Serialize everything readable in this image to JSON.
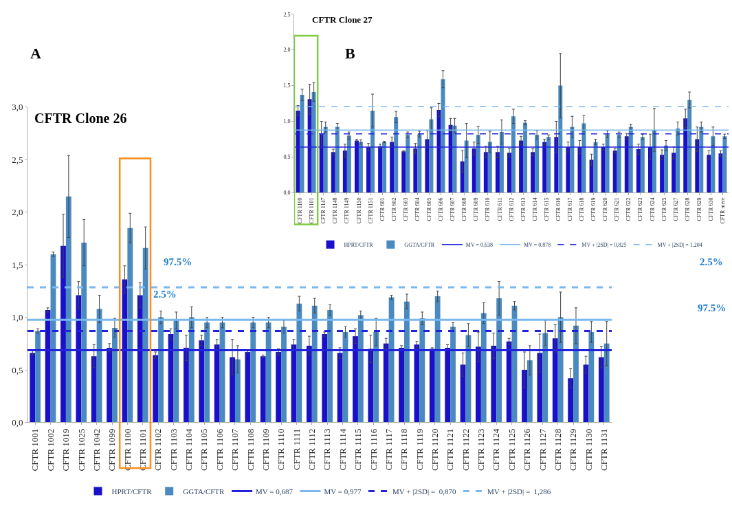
{
  "chart_data": [
    {
      "type": "bar",
      "title": "CFTR Clone 26",
      "categories": [
        "CFTR 1001",
        "CFTR 1002",
        "CFTR 1019",
        "CFTR 1025",
        "CFTR 1042",
        "CFTR 1099",
        "CFTR 1100",
        "CFTR 1101",
        "CFTR 1102",
        "CFTR 1103",
        "CFTR 1104",
        "CFTR 1105",
        "CFTR 1106",
        "CFTR 1107",
        "CFTR 1108",
        "CFTR 1109",
        "CFTR 1110",
        "CFTR 1111",
        "CFTR 1112",
        "CFTR 1113",
        "CFTR 1114",
        "CFTR 1115",
        "CFTR 1116",
        "CFTR 1117",
        "CFTR 1118",
        "CFTR 1119",
        "CFTR 1120",
        "CFTR 1121",
        "CFTR 1122",
        "CFTR 1123",
        "CFTR 1124",
        "CFTR 1125",
        "CFTR 1126",
        "CFTR 1127",
        "CFTR 1128",
        "CFTR 1129",
        "CFTR 1130",
        "CFTR 1131"
      ],
      "series": [
        {
          "name": "HPRT/CFTR",
          "color": "#1a10c8",
          "values": [
            0.66,
            1.07,
            1.68,
            1.21,
            0.63,
            0.71,
            1.36,
            1.21,
            0.64,
            0.84,
            0.71,
            0.78,
            0.74,
            0.62,
            0.67,
            0.63,
            0.67,
            0.74,
            0.73,
            0.84,
            0.66,
            0.82,
            0.7,
            0.75,
            0.71,
            0.74,
            0.7,
            0.71,
            0.55,
            0.72,
            0.73,
            0.77,
            0.5,
            0.66,
            0.8,
            0.42,
            0.55,
            0.62
          ],
          "errors": [
            0.02,
            0.02,
            0.3,
            0.13,
            0.11,
            0.04,
            0.13,
            0.12,
            0.03,
            0.05,
            0.12,
            0.05,
            0.05,
            0.17,
            0.01,
            0.01,
            0.03,
            0.05,
            0.09,
            0.02,
            0.05,
            0.07,
            0.13,
            0.05,
            0.02,
            0.03,
            0.01,
            0.03,
            0.11,
            0.14,
            0.12,
            0.03,
            0.17,
            0.18,
            0.13,
            0.09,
            0.08,
            0.1
          ]
        },
        {
          "name": "GGTA/CFTR",
          "color": "#4a8ac0",
          "values": [
            0.87,
            1.6,
            2.15,
            1.71,
            1.08,
            0.9,
            1.85,
            1.66,
            1.0,
            0.97,
            1.0,
            0.95,
            0.95,
            0.6,
            0.95,
            0.95,
            0.91,
            1.13,
            1.11,
            1.07,
            0.86,
            1.02,
            0.86,
            1.19,
            1.15,
            0.99,
            1.2,
            0.91,
            0.83,
            1.04,
            1.18,
            1.11,
            0.59,
            0.85,
            1.0,
            0.92,
            0.86,
            0.75
          ],
          "errors": [
            0.02,
            0.02,
            0.39,
            0.22,
            0.13,
            0.09,
            0.14,
            0.2,
            0.06,
            0.08,
            0.1,
            0.05,
            0.05,
            0.13,
            0.05,
            0.05,
            0.06,
            0.07,
            0.07,
            0.05,
            0.05,
            0.04,
            0.13,
            0.02,
            0.07,
            0.06,
            0.05,
            0.04,
            0.11,
            0.1,
            0.16,
            0.04,
            0.14,
            0.12,
            0.24,
            0.17,
            0.1,
            0.21
          ]
        }
      ],
      "ref_lines": [
        {
          "axis": "y",
          "value": 0.687,
          "label": "MV = 0,687",
          "color": "#2222dd",
          "line_style": "solid"
        },
        {
          "axis": "y",
          "value": 0.977,
          "label": "MV = 0,977",
          "color": "#7ab8f0",
          "line_style": "solid"
        },
        {
          "axis": "y",
          "value": 0.87,
          "label": "MV + |2SD| =  0,870",
          "color": "#2222dd",
          "line_style": "dashed"
        },
        {
          "axis": "y",
          "value": 1.286,
          "label": "MV + |2SD| =  1,286",
          "color": "#7ab8f0",
          "line_style": "dashed"
        }
      ],
      "ylim": [
        0,
        3
      ],
      "yticks": [
        {
          "value": 0,
          "label": "0,0"
        },
        {
          "value": 0.5,
          "label": "0,5"
        },
        {
          "value": 1,
          "label": "1,0"
        },
        {
          "value": 1.5,
          "label": "1,5"
        },
        {
          "value": 2,
          "label": "2,0"
        },
        {
          "value": 2.5,
          "label": "2,5"
        },
        {
          "value": 3,
          "label": "3,0"
        }
      ],
      "legend": "bottom",
      "annotations": [
        "A",
        "97.5%",
        "2.5%",
        "2.5%",
        "97.5%"
      ]
    },
    {
      "type": "bar",
      "title": "CFTR Clone 27",
      "categories": [
        "CFTR 1100",
        "CFTR 1101",
        "CFTR 1147",
        "CFTR 1148",
        "CFTR 1149",
        "CFTR 1150",
        "CFTR 1151",
        "CFTR 601",
        "CFTR 602",
        "CFTR 603",
        "CFTR 604",
        "CFTR 605",
        "CFTR 606",
        "CFTR 607",
        "CFTR 608",
        "CFTR 609",
        "CFTR 610",
        "CFTR 611",
        "CFTR 612",
        "CFTR 613",
        "CFTR 614",
        "CFTR 615",
        "CFTR 616",
        "CFTR 617",
        "CFTR 618",
        "CFTR 619",
        "CFTR 620",
        "CFTR 621",
        "CFTR 622",
        "CFTR 623",
        "CFTR 624",
        "CFTR 625",
        "CFTR 627",
        "CFTR 628",
        "CFTR 629",
        "CFTR 630",
        "CFTR mere"
      ],
      "series": [
        {
          "name": "HPRT/CFTR",
          "color": "#1a10c8",
          "values": [
            1.15,
            1.31,
            0.82,
            0.57,
            0.59,
            0.73,
            0.64,
            0.65,
            0.71,
            0.58,
            0.62,
            0.75,
            1.16,
            0.95,
            0.44,
            0.62,
            0.57,
            0.57,
            0.56,
            0.73,
            0.57,
            0.71,
            0.78,
            0.64,
            0.64,
            0.46,
            0.64,
            0.59,
            0.79,
            0.61,
            0.64,
            0.53,
            0.56,
            1.04,
            0.75,
            0.53,
            0.55
          ],
          "errors": [
            0.07,
            0.21,
            0.18,
            0.04,
            0.09,
            0.02,
            0.05,
            0.03,
            0.07,
            0.01,
            0.07,
            0.12,
            0.09,
            0.09,
            0.15,
            0.09,
            0.08,
            0.08,
            0.06,
            0.06,
            0.05,
            0.04,
            0.22,
            0.07,
            0.09,
            0.08,
            0.04,
            0.03,
            0.04,
            0.07,
            0.18,
            0.07,
            0.08,
            0.13,
            0.17,
            0.06,
            0.04
          ]
        },
        {
          "name": "GGTA/CFTR",
          "color": "#4a8ac0",
          "values": [
            1.37,
            1.41,
            0.92,
            0.92,
            0.8,
            0.71,
            1.15,
            0.71,
            1.06,
            0.81,
            0.82,
            1.03,
            1.59,
            0.94,
            0.73,
            0.81,
            0.71,
            0.85,
            1.07,
            0.98,
            0.81,
            0.78,
            1.5,
            0.92,
            0.97,
            0.71,
            0.82,
            0.81,
            0.92,
            0.78,
            0.88,
            0.66,
            0.9,
            1.3,
            0.92,
            0.79,
            0.79
          ],
          "errors": [
            0.08,
            0.13,
            0.07,
            0.05,
            0.05,
            0.03,
            0.23,
            0.01,
            0.08,
            0.04,
            0.04,
            0.16,
            0.12,
            0.1,
            0.24,
            0.12,
            0.15,
            0.17,
            0.1,
            0.03,
            0.06,
            0.03,
            0.45,
            0.15,
            0.11,
            0.04,
            0.05,
            0.04,
            0.04,
            0.04,
            0.3,
            0.07,
            0.09,
            0.11,
            0.07,
            0.13,
            0.03
          ]
        }
      ],
      "ref_lines": [
        {
          "axis": "y",
          "value": 0.638,
          "label": "MV = 0,638",
          "color": "#2222dd",
          "line_style": "solid"
        },
        {
          "axis": "y",
          "value": 0.878,
          "label": "MV = 0,878",
          "color": "#7ab8f0",
          "line_style": "solid"
        },
        {
          "axis": "y",
          "value": 0.825,
          "label": "MV + |2SD| = 0,825",
          "color": "#2222dd",
          "line_style": "dashed"
        },
        {
          "axis": "y",
          "value": 1.204,
          "label": "MV + |2SD| = 1,204",
          "color": "#7ab8f0",
          "line_style": "dashed"
        }
      ],
      "ylim": [
        0,
        2.5
      ],
      "yticks": [
        {
          "value": 0,
          "label": "0,0"
        },
        {
          "value": 0.5,
          "label": "0,5"
        },
        {
          "value": 1,
          "label": "1,0"
        },
        {
          "value": 1.5,
          "label": "1,5"
        },
        {
          "value": 2,
          "label": "2,0"
        },
        {
          "value": 2.5,
          "label": "2,5"
        }
      ],
      "legend": "bottom",
      "annotations": [
        "B"
      ]
    }
  ]
}
